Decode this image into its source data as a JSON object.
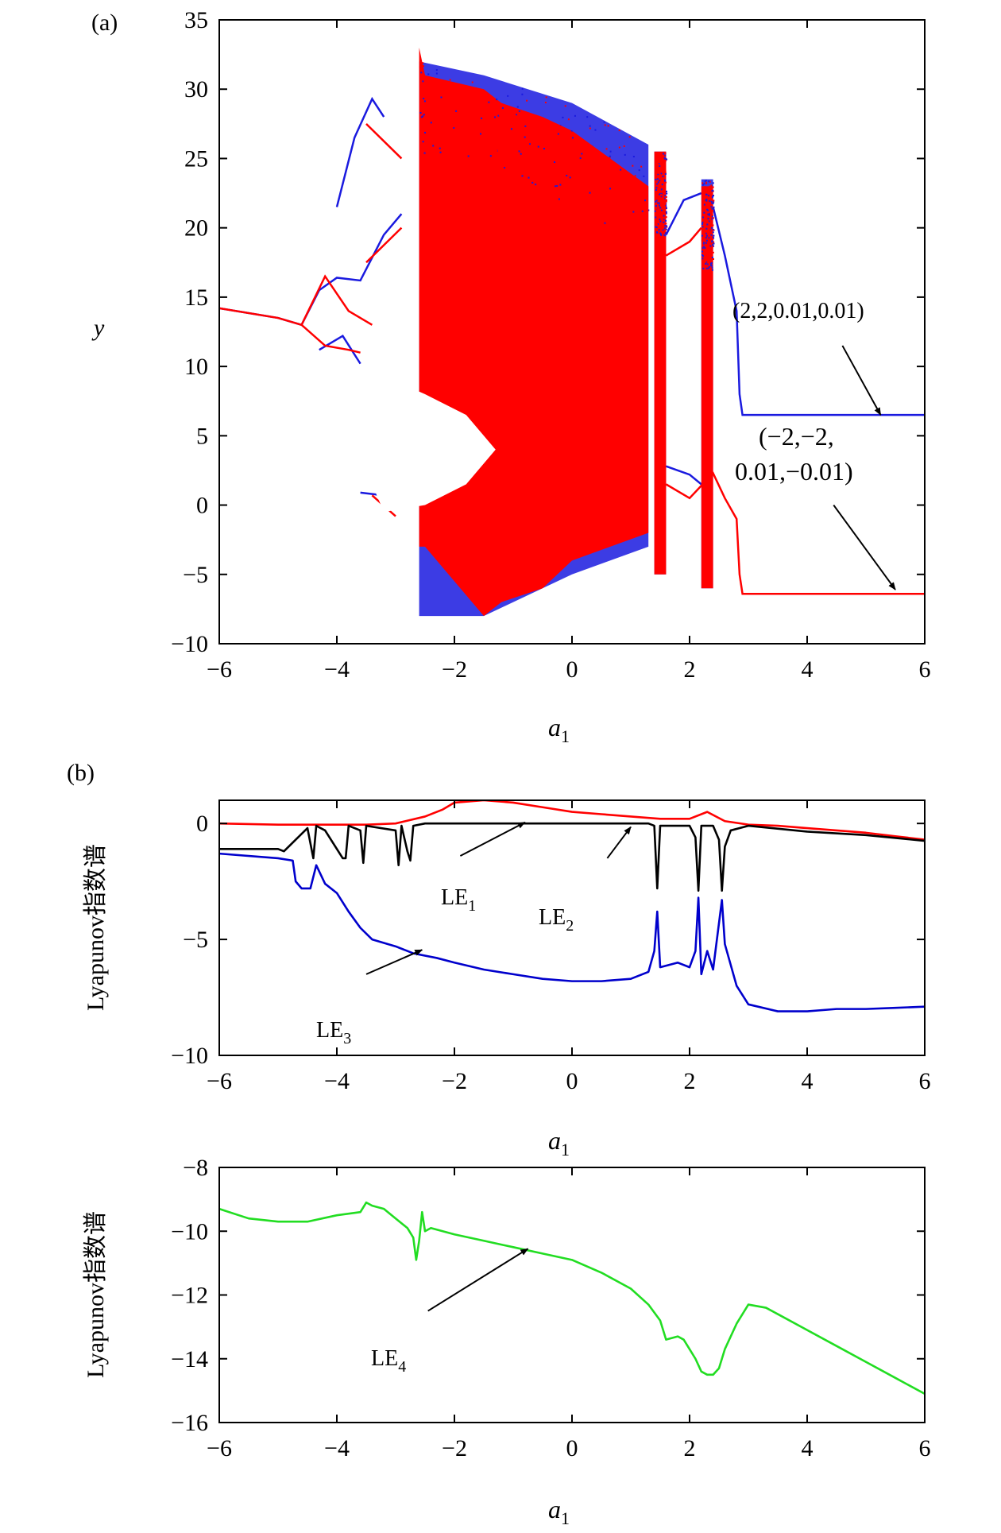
{
  "chart_data": [
    {
      "panel": "(a)",
      "type": "scatter",
      "xlabel": "a1",
      "ylabel": "y",
      "xlim": [
        -6,
        6
      ],
      "ylim": [
        -10,
        35
      ],
      "xticks": [
        -6,
        -4,
        -2,
        0,
        2,
        4,
        6
      ],
      "yticks": [
        -10,
        -5,
        0,
        5,
        10,
        15,
        20,
        25,
        30,
        35
      ],
      "series": [
        {
          "name": "(2,2,0.01,0.01)",
          "color": "#1a1adf",
          "periodic_branches": [
            {
              "x": [
                -6,
                -5,
                -4.6
              ],
              "y": [
                14.2,
                13.5,
                13.0
              ]
            },
            {
              "x": [
                -4.6,
                -4.3,
                -4.0,
                -3.6,
                -3.2,
                -2.9
              ],
              "y": [
                13.0,
                15.5,
                16.4,
                16.2,
                19.5,
                21
              ]
            },
            {
              "x": [
                -4.0,
                -3.7,
                -3.4,
                -3.2
              ],
              "y": [
                21.5,
                26.5,
                29.3,
                28
              ]
            },
            {
              "x": [
                -4.3,
                -3.9,
                -3.6
              ],
              "y": [
                11.2,
                12.2,
                10.2
              ]
            },
            {
              "x": [
                -3.6,
                -3.2
              ],
              "y": [
                0.9,
                0.7
              ]
            },
            {
              "x": [
                1.6,
                1.9,
                2.2
              ],
              "y": [
                19.5,
                22,
                22.5
              ]
            },
            {
              "x": [
                2.4,
                2.6,
                2.8,
                2.85,
                2.9,
                6
              ],
              "y": [
                21.5,
                18,
                14,
                8,
                6.5,
                6.5
              ]
            },
            {
              "x": [
                1.6,
                2.0,
                2.2
              ],
              "y": [
                2.8,
                2.2,
                1.5
              ]
            }
          ],
          "chaotic_bands": [
            {
              "x": [
                -2.6,
                -1.5,
                0,
                1.3
              ],
              "ymin": [
                -8,
                -8,
                -5,
                -3
              ],
              "ymax": [
                32,
                31,
                29,
                26
              ]
            },
            {
              "x": [
                1.4,
                1.6
              ],
              "ymin": [
                -5,
                -5
              ],
              "ymax": [
                25.5,
                25.5
              ]
            },
            {
              "x": [
                2.2,
                2.4
              ],
              "ymin": [
                -6,
                -6
              ],
              "ymax": [
                23.5,
                23.5
              ]
            }
          ]
        },
        {
          "name": "(−2,−2, 0.01,−0.01)",
          "color": "#ff0000",
          "periodic_branches": [
            {
              "x": [
                -6,
                -5,
                -4.6
              ],
              "y": [
                14.2,
                13.5,
                13.0
              ]
            },
            {
              "x": [
                -4.6,
                -4.2,
                -3.8,
                -3.4
              ],
              "y": [
                13.0,
                16.5,
                14,
                13
              ]
            },
            {
              "x": [
                -4.6,
                -4.2,
                -3.8,
                -3.6
              ],
              "y": [
                13.0,
                11.5,
                11.2,
                11
              ]
            },
            {
              "x": [
                -3.5,
                -2.9
              ],
              "y": [
                27.5,
                25
              ]
            },
            {
              "x": [
                -3.5,
                -2.9
              ],
              "y": [
                17.5,
                20
              ]
            },
            {
              "x": [
                -3.4,
                -3.0
              ],
              "y": [
                0.7,
                -0.8
              ]
            },
            {
              "x": [
                1.6,
                2.0,
                2.4,
                2.6,
                2.8,
                2.85,
                2.9,
                6
              ],
              "y": [
                1.5,
                0.5,
                2.3,
                0.5,
                -1,
                -5,
                -6.4,
                -6.4
              ]
            },
            {
              "x": [
                1.6,
                2.0,
                2.2
              ],
              "y": [
                18,
                19,
                20
              ]
            }
          ],
          "chaotic_bands": [
            {
              "x": [
                -2.6,
                -2.5,
                -1.5,
                -1.2,
                -0.5,
                0,
                1.3
              ],
              "ymin": [
                -3,
                -3,
                -8,
                -7,
                -6,
                -4,
                -2
              ],
              "ymax": [
                33,
                31,
                30,
                29,
                28,
                27,
                23
              ]
            },
            {
              "x": [
                1.4,
                1.6
              ],
              "ymin": [
                -5,
                -5
              ],
              "ymax": [
                25.5,
                25.5
              ]
            },
            {
              "x": [
                2.2,
                2.4
              ],
              "ymin": [
                -6,
                -6
              ],
              "ymax": [
                23,
                23
              ]
            }
          ],
          "hollow_region": {
            "x": [
              -4.1,
              -3.2,
              -2.5,
              -1.8,
              -1.3,
              -1.8,
              -2.5,
              -3.2,
              -4.1
            ],
            "y": [
              8.5,
              9.3,
              8.0,
              6.5,
              4.0,
              1.5,
              0.0,
              -0.5,
              8.5
            ]
          }
        }
      ],
      "annotations": [
        {
          "text": "(2,2,0.01,0.01)",
          "from": [
            4.6,
            11.5
          ],
          "to": [
            5.25,
            6.5
          ]
        },
        {
          "text_lines": [
            "(−2,−2,",
            "0.01,−0.01)"
          ],
          "from": [
            4.45,
            0.0
          ],
          "to": [
            5.5,
            -6.1
          ]
        }
      ]
    },
    {
      "panel": "(b)",
      "type": "line",
      "xlabel": "a1",
      "ylabel": "Lyapunov指数谱",
      "xlim": [
        -6,
        6
      ],
      "ylim": [
        -10,
        1
      ],
      "xticks": [
        -6,
        -4,
        -2,
        0,
        2,
        4,
        6
      ],
      "yticks": [
        -10,
        -5,
        0
      ],
      "series": [
        {
          "name": "LE1",
          "color": "#ff0000",
          "x": [
            -6,
            -5,
            -4.5,
            -4,
            -3.5,
            -3,
            -2.5,
            -2.2,
            -2,
            -1.5,
            -1,
            -0.5,
            0,
            0.5,
            1,
            1.5,
            2,
            2.3,
            2.6,
            3,
            3.5,
            4,
            4.5,
            5,
            5.5,
            6
          ],
          "y": [
            0,
            -0.05,
            -0.05,
            -0.05,
            -0.05,
            0,
            0.3,
            0.6,
            0.9,
            1.0,
            0.9,
            0.7,
            0.5,
            0.4,
            0.3,
            0.2,
            0.2,
            0.5,
            0.1,
            -0.05,
            -0.1,
            -0.2,
            -0.3,
            -0.4,
            -0.55,
            -0.7
          ]
        },
        {
          "name": "LE2",
          "color": "#000000",
          "x": [
            -6,
            -5,
            -4.9,
            -4.5,
            -4.4,
            -4.35,
            -4.2,
            -3.9,
            -3.85,
            -3.8,
            -3.6,
            -3.55,
            -3.5,
            -3.0,
            -2.95,
            -2.9,
            -2.8,
            -2.75,
            -2.7,
            -2.5,
            1.3,
            1.4,
            1.45,
            1.5,
            2.0,
            2.1,
            2.15,
            2.2,
            2.4,
            2.5,
            2.55,
            2.6,
            2.7,
            3,
            4,
            5,
            6
          ],
          "y": [
            -1.1,
            -1.1,
            -1.2,
            -0.2,
            -1.5,
            -0.1,
            -0.3,
            -1.5,
            -1.5,
            -0.1,
            -0.3,
            -1.7,
            -0.1,
            -0.3,
            -1.8,
            -0.1,
            -1.2,
            -1.6,
            -0.1,
            0,
            0,
            -0.1,
            -2.8,
            -0.1,
            -0.1,
            -0.6,
            -2.9,
            -0.1,
            -0.1,
            -0.7,
            -2.9,
            -1.0,
            -0.3,
            -0.1,
            -0.35,
            -0.5,
            -0.75
          ]
        },
        {
          "name": "LE3",
          "color": "#0000cc",
          "x": [
            -6,
            -5,
            -4.75,
            -4.7,
            -4.6,
            -4.45,
            -4.35,
            -4.2,
            -4,
            -3.8,
            -3.6,
            -3.4,
            -3,
            -2.7,
            -2.3,
            -2,
            -1.5,
            -1,
            -0.5,
            0,
            0.5,
            1,
            1.3,
            1.4,
            1.45,
            1.5,
            1.8,
            2.0,
            2.1,
            2.15,
            2.2,
            2.3,
            2.4,
            2.55,
            2.6,
            2.8,
            3,
            3.5,
            4,
            4.5,
            5,
            5.5,
            6
          ],
          "y": [
            -1.3,
            -1.5,
            -1.6,
            -2.5,
            -2.8,
            -2.8,
            -1.8,
            -2.6,
            -3.0,
            -3.8,
            -4.5,
            -5.0,
            -5.3,
            -5.6,
            -5.8,
            -6.0,
            -6.3,
            -6.5,
            -6.7,
            -6.8,
            -6.8,
            -6.7,
            -6.4,
            -5.5,
            -3.8,
            -6.2,
            -6.0,
            -6.2,
            -5.5,
            -3.2,
            -6.5,
            -5.5,
            -6.3,
            -3.3,
            -5.2,
            -7.0,
            -7.8,
            -8.1,
            -8.1,
            -8.0,
            -8.0,
            -7.95,
            -7.9
          ]
        }
      ],
      "annotations": [
        {
          "text": "LE1",
          "from": [
            -1.9,
            -1.4
          ],
          "to": [
            -0.8,
            0.05
          ]
        },
        {
          "text": "LE2",
          "from": [
            0.6,
            -1.5
          ],
          "to": [
            1.0,
            -0.15
          ]
        },
        {
          "text": "LE3",
          "from": [
            -3.5,
            -6.5
          ],
          "to": [
            -2.55,
            -5.45
          ]
        }
      ]
    },
    {
      "panel": "",
      "type": "line",
      "xlabel": "a1",
      "ylabel": "Lyapunov指数谱",
      "xlim": [
        -6,
        6
      ],
      "ylim": [
        -16,
        -8
      ],
      "xticks": [
        -6,
        -4,
        -2,
        0,
        2,
        4,
        6
      ],
      "yticks": [
        -16,
        -14,
        -12,
        -10,
        -8
      ],
      "series": [
        {
          "name": "LE4",
          "color": "#22dd22",
          "x": [
            -6,
            -5.5,
            -5,
            -4.5,
            -4,
            -3.6,
            -3.5,
            -3.4,
            -3.2,
            -3.0,
            -2.8,
            -2.7,
            -2.65,
            -2.6,
            -2.55,
            -2.5,
            -2.4,
            -2,
            -1.5,
            -1,
            -0.5,
            0,
            0.5,
            1,
            1.3,
            1.5,
            1.6,
            1.8,
            1.9,
            2.0,
            2.1,
            2.2,
            2.3,
            2.4,
            2.5,
            2.6,
            2.8,
            3,
            3.3,
            3.5,
            4,
            4.5,
            5,
            5.5,
            6
          ],
          "y": [
            -9.3,
            -9.6,
            -9.7,
            -9.7,
            -9.5,
            -9.4,
            -9.1,
            -9.2,
            -9.3,
            -9.6,
            -9.9,
            -10.2,
            -10.9,
            -10.3,
            -9.4,
            -10.0,
            -9.9,
            -10.1,
            -10.3,
            -10.5,
            -10.7,
            -10.9,
            -11.3,
            -11.8,
            -12.3,
            -12.8,
            -13.4,
            -13.3,
            -13.4,
            -13.7,
            -14.0,
            -14.4,
            -14.5,
            -14.5,
            -14.3,
            -13.7,
            -12.9,
            -12.3,
            -12.4,
            -12.6,
            -13.1,
            -13.6,
            -14.1,
            -14.6,
            -15.1
          ]
        }
      ],
      "annotations": [
        {
          "text": "LE4",
          "from": [
            -2.45,
            -12.5
          ],
          "to": [
            -0.75,
            -10.55
          ]
        }
      ]
    }
  ],
  "labels": {
    "panel_a": "(a)",
    "panel_b": "(b)",
    "xlabel_a": "a",
    "xlabel_sub": "1",
    "ylabel_a": "y",
    "ylabel_b": "Lyapunov指数谱",
    "anno_a1": "(2,2,0.01,0.01)",
    "anno_a2_l1": "(−2,−2,",
    "anno_a2_l2": "0.01,−0.01)",
    "le1": "LE",
    "le1_sub": "1",
    "le2": "LE",
    "le2_sub": "2",
    "le3": "LE",
    "le3_sub": "3",
    "le4": "LE",
    "le4_sub": "4"
  }
}
